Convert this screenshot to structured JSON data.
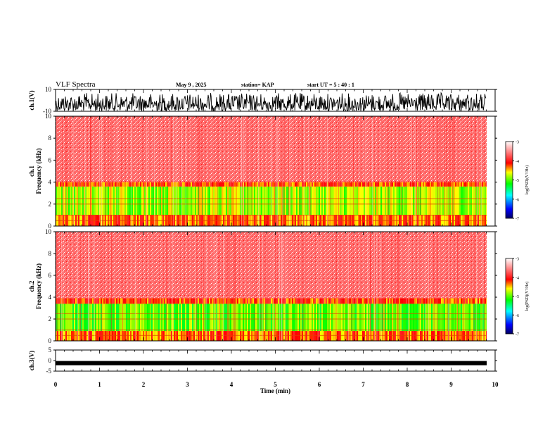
{
  "header": {
    "title": "VLF Spectra",
    "date": "May 9  , 2025",
    "station": "station= KAP",
    "start": "start  UT  =   5 : 40 : 1"
  },
  "chart_data": [
    {
      "type": "line",
      "panel": "ch1-waveform",
      "ylabel": "ch.1(V)",
      "ylim": [
        -10,
        10
      ],
      "yticks": [
        "10",
        "-10"
      ],
      "xlim": [
        0,
        10
      ],
      "description_values": {
        "amplitude_max": 10,
        "amplitude_min": -10
      },
      "color": "#000000"
    },
    {
      "type": "heatmap",
      "panel": "ch1-spectrogram",
      "ylabel": "ch.1\nFrequency (kHz)",
      "ylabel_lines": [
        "ch.1",
        "Frequency (kHz)"
      ],
      "ylim": [
        0,
        10
      ],
      "yticks": [
        "0",
        "2",
        "4",
        "6",
        "8",
        "10"
      ],
      "xlim": [
        0,
        10
      ],
      "bands": [
        {
          "from": 0,
          "to": 1.0,
          "level": -4.3
        },
        {
          "from": 1.0,
          "to": 3.6,
          "level": -4.8
        },
        {
          "from": 3.6,
          "to": 4.0,
          "level": -4.2
        },
        {
          "from": 4.0,
          "to": 10,
          "level": -3.4
        }
      ],
      "colorbar": {
        "label": "log(PSD)(V²/Hz)",
        "ticks": [
          "-3",
          "-4",
          "-5",
          "-6",
          "-7"
        ],
        "range": [
          -7,
          -3
        ]
      }
    },
    {
      "type": "heatmap",
      "panel": "ch2-spectrogram",
      "ylabel": "ch.2\nFrequency (kHz)",
      "ylabel_lines": [
        "ch.2",
        "Frequency (kHz)"
      ],
      "ylim": [
        0,
        10
      ],
      "yticks": [
        "0",
        "2",
        "4",
        "6",
        "8",
        "10"
      ],
      "xlim": [
        0,
        10
      ],
      "bands": [
        {
          "from": 0,
          "to": 0.9,
          "level": -4.3
        },
        {
          "from": 0.9,
          "to": 3.4,
          "level": -5.0
        },
        {
          "from": 3.4,
          "to": 3.9,
          "level": -4.2
        },
        {
          "from": 3.9,
          "to": 10,
          "level": -3.4
        }
      ],
      "colorbar": {
        "label": "log(PSD)(V²/Hz)",
        "ticks": [
          "-3",
          "-4",
          "-5",
          "-6",
          "-7"
        ],
        "range": [
          -7,
          -3
        ]
      }
    },
    {
      "type": "line",
      "panel": "ch3-waveform",
      "ylabel": "ch.3(V)",
      "ylim": [
        -5,
        5
      ],
      "yticks": [
        "5",
        "0",
        "-5"
      ],
      "xlim": [
        0,
        10
      ],
      "xlabel": "Time (min)",
      "xticks": [
        "0",
        "1",
        "2",
        "3",
        "4",
        "5",
        "6",
        "7",
        "8",
        "9",
        "10"
      ],
      "level": -1.2,
      "color": "#000000"
    }
  ],
  "colors": {
    "colormap": [
      "#000070",
      "#0000ff",
      "#00ffff",
      "#00ff00",
      "#ffff00",
      "#ff0000",
      "#ffffff"
    ],
    "trace": "#000000"
  }
}
